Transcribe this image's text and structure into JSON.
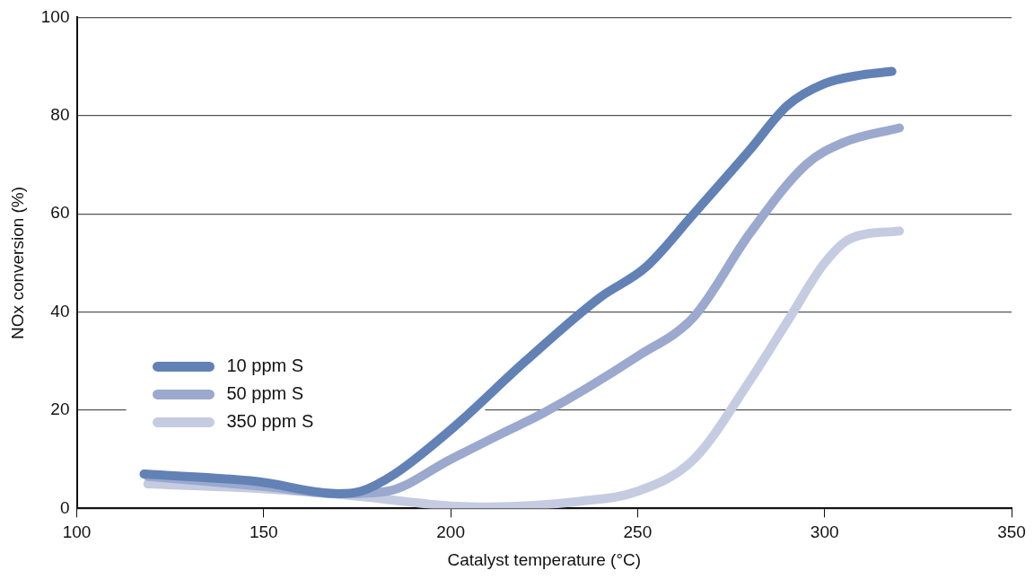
{
  "chart_data": {
    "type": "line",
    "xlabel": "Catalyst temperature (°C)",
    "ylabel": "NOx conversion (%)",
    "xlim": [
      100,
      350
    ],
    "xticks": [
      100,
      150,
      200,
      250,
      300,
      350
    ],
    "ylim": [
      0,
      100
    ],
    "yticks": [
      0,
      20,
      40,
      60,
      80,
      100
    ],
    "grid": "y",
    "legend": "bottom left",
    "marker": "none",
    "line_style": "solid",
    "series": [
      {
        "name": "10 ppm S",
        "color": "#6282b6",
        "x": [
          118,
          148,
          170,
          176,
          185,
          200,
          220,
          240,
          252,
          265,
          280,
          290,
          300,
          310,
          318
        ],
        "values": [
          7,
          5.5,
          3,
          3.5,
          7,
          16,
          30,
          43,
          49,
          60,
          73,
          82,
          86.5,
          88.3,
          89
        ]
      },
      {
        "name": "50 ppm S",
        "color": "#9aa9cd",
        "x": [
          119,
          150,
          170,
          183,
          200,
          213,
          225,
          250,
          265,
          280,
          295,
          305,
          320
        ],
        "values": [
          6.5,
          4.5,
          3,
          3.5,
          10,
          15,
          19.5,
          31,
          39,
          56,
          70,
          74.5,
          77.5
        ]
      },
      {
        "name": "350 ppm S",
        "color": "#c5cbe1",
        "x": [
          119,
          150,
          175,
          200,
          210,
          235,
          250,
          265,
          280,
          290,
          300,
          307,
          320
        ],
        "values": [
          5,
          4,
          2.5,
          0.5,
          0.3,
          1.5,
          3.5,
          10,
          26,
          38,
          50,
          55,
          56.5
        ]
      }
    ]
  }
}
